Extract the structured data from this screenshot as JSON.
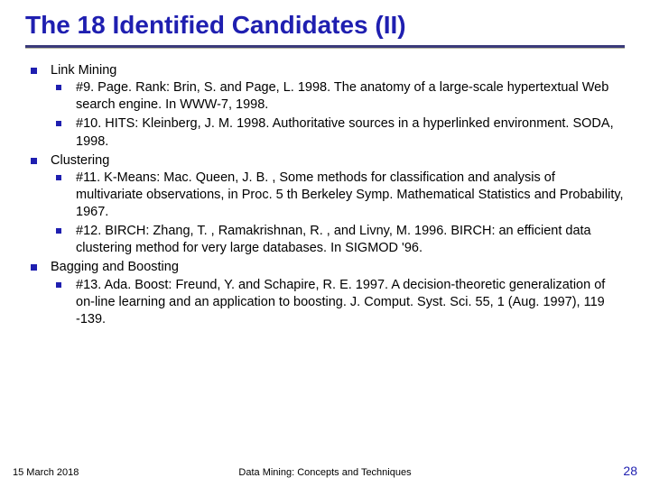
{
  "title": "The 18 Identified Candidates (II)",
  "colors": {
    "title": "#1f1fb0",
    "bullet": "#1f1fb0",
    "underline_dark": "#3a3a7a",
    "underline_light": "#b8b8a0",
    "text": "#000000",
    "pagenum": "#1f1fb0",
    "background": "#ffffff"
  },
  "sections": [
    {
      "label": "Link Mining",
      "items": [
        "#9. Page. Rank: Brin, S. and Page, L. 1998. The anatomy of a large-scale hypertextual Web search engine. In WWW-7, 1998.",
        "#10. HITS: Kleinberg, J. M. 1998. Authoritative sources in a hyperlinked environment. SODA, 1998."
      ]
    },
    {
      "label": "Clustering",
      "items": [
        "#11. K-Means: Mac. Queen, J. B. , Some methods for classification and analysis of multivariate observations, in Proc. 5 th Berkeley Symp. Mathematical Statistics and Probability, 1967.",
        "#12. BIRCH: Zhang, T. , Ramakrishnan, R. , and Livny, M. 1996. BIRCH: an efficient data clustering method for very large databases. In SIGMOD '96."
      ]
    },
    {
      "label": "Bagging and Boosting",
      "items": [
        "#13. Ada. Boost: Freund, Y. and Schapire, R. E. 1997. A decision-theoretic generalization of on-line learning and an application to boosting. J. Comput. Syst. Sci. 55, 1 (Aug. 1997), 119 -139."
      ]
    }
  ],
  "footer": {
    "date": "15 March 2018",
    "center": "Data Mining: Concepts and Techniques",
    "page": "28"
  }
}
